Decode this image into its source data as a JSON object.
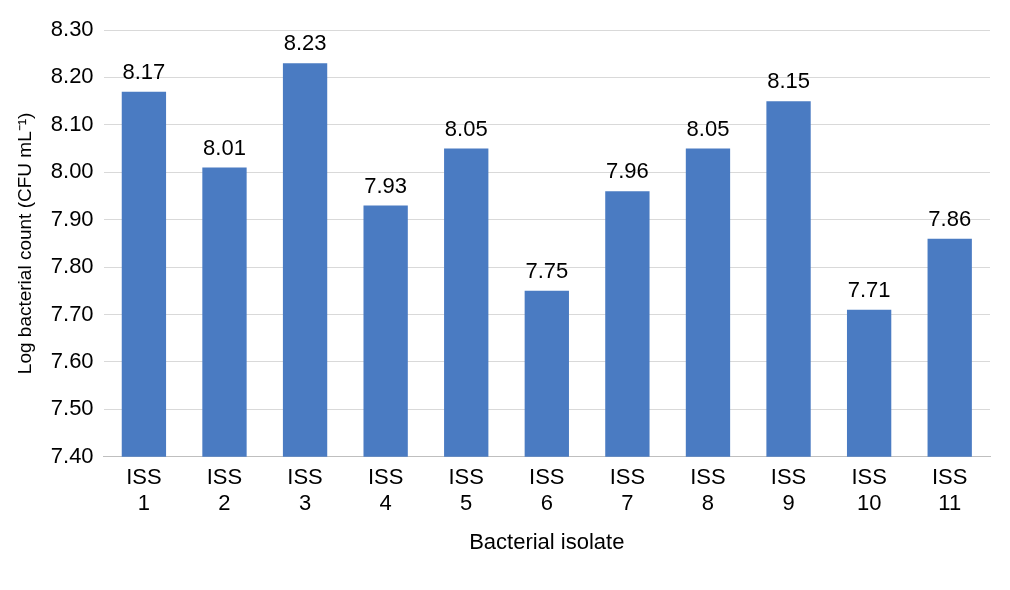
{
  "chart_data": {
    "type": "bar",
    "xlabel": "Bacterial isolate",
    "ylabel": "Log bacterial count (CFU mL⁻¹)",
    "categories": [
      "ISS 1",
      "ISS 2",
      "ISS 3",
      "ISS 4",
      "ISS 5",
      "ISS 6",
      "ISS 7",
      "ISS 8",
      "ISS 9",
      "ISS 10",
      "ISS 11"
    ],
    "values": [
      8.17,
      8.01,
      8.23,
      7.93,
      8.05,
      7.75,
      7.96,
      8.05,
      8.15,
      7.71,
      7.86
    ],
    "color": "#4a7bc2",
    "data_labels": true,
    "grid": "y",
    "legend": false,
    "ylim": [
      7.4,
      8.3
    ],
    "yticks": [
      {
        "value": 7.4,
        "label": "7.40"
      },
      {
        "value": 7.5,
        "label": "7.50"
      },
      {
        "value": 7.6,
        "label": "7.60"
      },
      {
        "value": 7.7,
        "label": "7.70"
      },
      {
        "value": 7.8,
        "label": "7.80"
      },
      {
        "value": 7.9,
        "label": "7.90"
      },
      {
        "value": 8.0,
        "label": "8.00"
      },
      {
        "value": 8.1,
        "label": "8.10"
      },
      {
        "value": 8.2,
        "label": "8.20"
      },
      {
        "value": 8.3,
        "label": "8.30"
      }
    ]
  }
}
